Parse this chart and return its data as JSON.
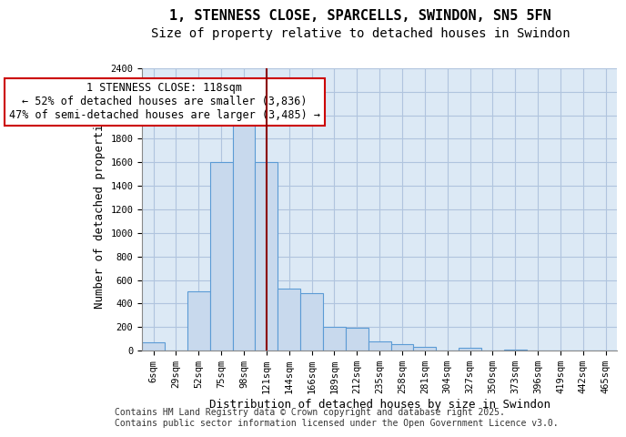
{
  "title_line1": "1, STENNESS CLOSE, SPARCELLS, SWINDON, SN5 5FN",
  "title_line2": "Size of property relative to detached houses in Swindon",
  "xlabel": "Distribution of detached houses by size in Swindon",
  "ylabel": "Number of detached properties",
  "categories": [
    "6sqm",
    "29sqm",
    "52sqm",
    "75sqm",
    "98sqm",
    "121sqm",
    "144sqm",
    "166sqm",
    "189sqm",
    "212sqm",
    "235sqm",
    "258sqm",
    "281sqm",
    "304sqm",
    "327sqm",
    "350sqm",
    "373sqm",
    "396sqm",
    "419sqm",
    "442sqm",
    "465sqm"
  ],
  "values": [
    70,
    0,
    500,
    1600,
    2050,
    1600,
    530,
    490,
    200,
    190,
    80,
    55,
    30,
    0,
    20,
    0,
    10,
    0,
    0,
    0,
    0
  ],
  "bar_color": "#c8d9ed",
  "bar_edge_color": "#5b9bd5",
  "vline_x_index": 5,
  "vline_color": "#8b0000",
  "annotation_text": "1 STENNESS CLOSE: 118sqm\n← 52% of detached houses are smaller (3,836)\n47% of semi-detached houses are larger (3,485) →",
  "annotation_box_color": "#ffffff",
  "annotation_box_edge": "#cc0000",
  "ylim": [
    0,
    2400
  ],
  "yticks": [
    0,
    200,
    400,
    600,
    800,
    1000,
    1200,
    1400,
    1600,
    1800,
    2000,
    2200,
    2400
  ],
  "grid_color": "#b0c4de",
  "bg_color": "#dce9f5",
  "footer": "Contains HM Land Registry data © Crown copyright and database right 2025.\nContains public sector information licensed under the Open Government Licence v3.0.",
  "title_fontsize": 11,
  "subtitle_fontsize": 10,
  "tick_fontsize": 7.5,
  "label_fontsize": 9,
  "annotation_fontsize": 8.5,
  "footer_fontsize": 7
}
